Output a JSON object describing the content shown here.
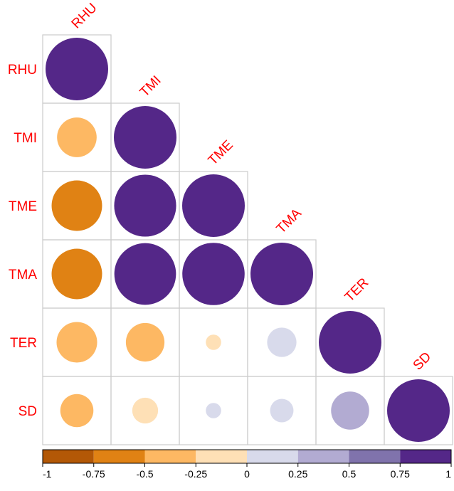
{
  "chart_data": {
    "type": "heatmap",
    "subtype": "correlation-circles-lower-triangle",
    "variables": [
      "RHU",
      "TMI",
      "TME",
      "TMA",
      "TER",
      "SD"
    ],
    "matrix": [
      [
        1.0,
        null,
        null,
        null,
        null,
        null
      ],
      [
        -0.4,
        1.0,
        null,
        null,
        null,
        null
      ],
      [
        -0.65,
        0.98,
        1.0,
        null,
        null,
        null
      ],
      [
        -0.65,
        0.97,
        0.99,
        1.0,
        null,
        null
      ],
      [
        -0.42,
        -0.38,
        -0.06,
        0.22,
        1.0,
        null
      ],
      [
        -0.28,
        -0.17,
        0.06,
        0.14,
        0.37,
        1.0
      ]
    ],
    "colorbar": {
      "min": -1,
      "max": 1,
      "tick_labels": [
        "-1",
        "-0.75",
        "-0.5",
        "-0.25",
        "0",
        "0.25",
        "0.5",
        "0.75",
        "1"
      ],
      "bins": [
        {
          "from": -1.0,
          "to": -0.75,
          "color": "#b35806"
        },
        {
          "from": -0.75,
          "to": -0.5,
          "color": "#e08214"
        },
        {
          "from": -0.5,
          "to": -0.25,
          "color": "#fdb863"
        },
        {
          "from": -0.25,
          "to": 0.0,
          "color": "#fee0b6"
        },
        {
          "from": 0.0,
          "to": 0.25,
          "color": "#d8daeb"
        },
        {
          "from": 0.25,
          "to": 0.5,
          "color": "#b2abd2"
        },
        {
          "from": 0.5,
          "to": 0.75,
          "color": "#8073ac"
        },
        {
          "from": 0.75,
          "to": 1.0,
          "color": "#542788"
        }
      ]
    },
    "label_color": "#ff0000",
    "grid_color": "#cccccc",
    "legend_position": "bottom"
  }
}
